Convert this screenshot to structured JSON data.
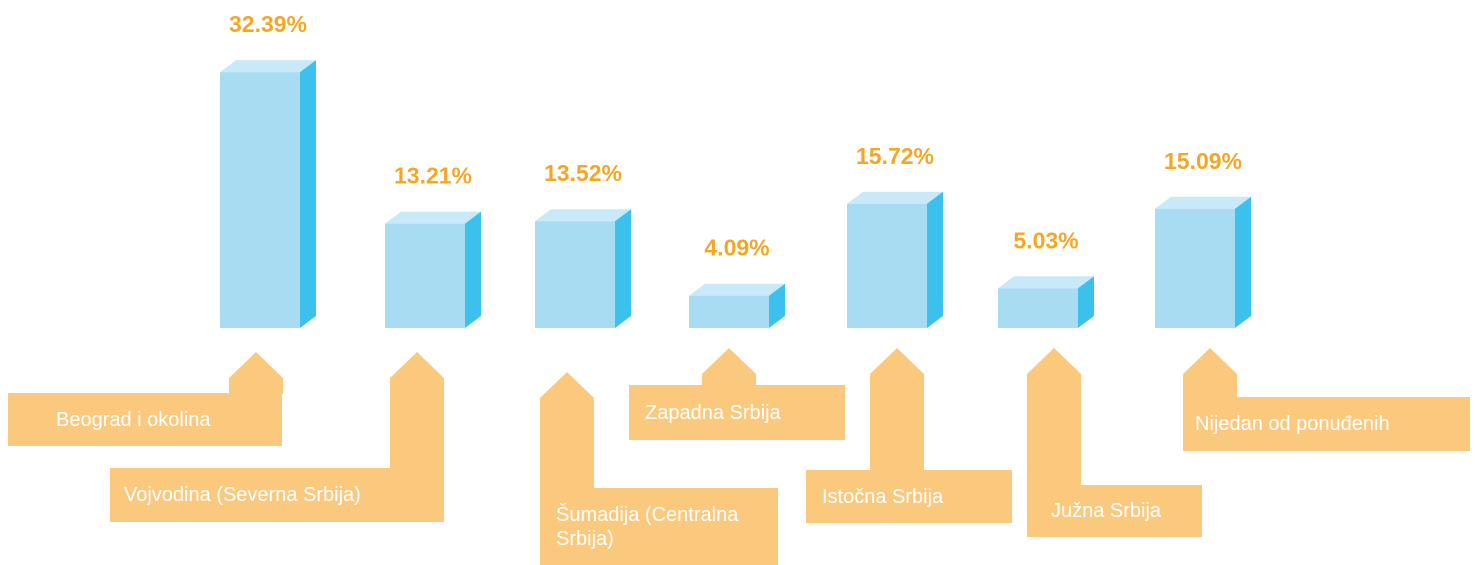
{
  "chart_data": {
    "type": "bar",
    "categories": [
      "Beograd i okolina",
      "Vojvodina (Severna Srbija)",
      "Šumadija (Centralna Srbija)",
      "Zapadna Srbija",
      "Istočna Srbija",
      "Južna Srbija",
      "Nijedan od ponuđenih"
    ],
    "values": [
      32.39,
      13.21,
      13.52,
      4.09,
      15.72,
      5.03,
      15.09
    ],
    "value_labels": [
      "32.39%",
      "13.21%",
      "13.52%",
      "4.09%",
      "15.72%",
      "5.03%",
      "15.09%"
    ],
    "color": "#a8dcf3"
  }
}
